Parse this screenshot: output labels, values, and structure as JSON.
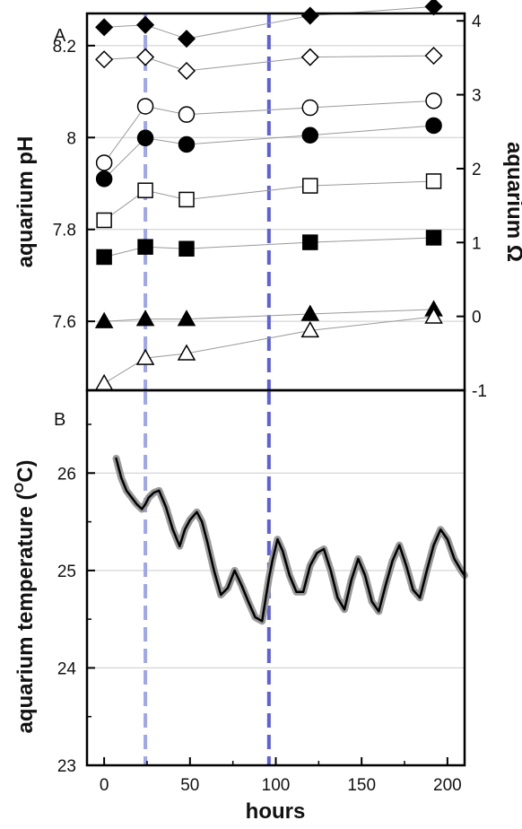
{
  "chart_data": [
    {
      "panel": "A",
      "type": "scatter",
      "xlabel": "",
      "ylabel": "aquarium pH",
      "y2label": "aquarium Ω",
      "xlim": [
        -10,
        210
      ],
      "ylim": [
        7.45,
        8.27
      ],
      "y2lim": [
        -1,
        4.1
      ],
      "yticks": [
        "7.6",
        "7.8",
        "8",
        "8.2"
      ],
      "y2ticks": [
        "-1",
        "0",
        "1",
        "2",
        "3",
        "4"
      ],
      "grid": "horizontal",
      "x": [
        0,
        24,
        48,
        120,
        192
      ],
      "series": [
        {
          "marker": "diamond",
          "filled": true,
          "values": [
            8.24,
            8.245,
            8.215,
            8.265,
            8.285
          ]
        },
        {
          "marker": "diamond",
          "filled": false,
          "values": [
            8.17,
            8.175,
            8.145,
            8.175,
            8.178
          ]
        },
        {
          "marker": "circle",
          "filled": false,
          "values": [
            7.945,
            8.068,
            8.05,
            8.065,
            8.08
          ]
        },
        {
          "marker": "circle",
          "filled": true,
          "values": [
            7.91,
            7.999,
            7.985,
            8.005,
            8.026
          ]
        },
        {
          "marker": "square",
          "filled": false,
          "values": [
            7.82,
            7.885,
            7.865,
            7.895,
            7.905
          ]
        },
        {
          "marker": "square",
          "filled": true,
          "values": [
            7.74,
            7.762,
            7.758,
            7.772,
            7.782
          ]
        },
        {
          "marker": "triangle",
          "filled": true,
          "values": [
            7.6,
            7.605,
            7.605,
            7.616,
            7.626
          ]
        },
        {
          "marker": "triangle",
          "filled": false,
          "values": [
            7.465,
            7.52,
            7.53,
            7.58,
            7.61
          ]
        }
      ],
      "vlines": [
        {
          "x": 24,
          "color": "#9da6ee"
        },
        {
          "x": 96,
          "color": "#5b5fe0"
        }
      ]
    },
    {
      "panel": "B",
      "type": "line",
      "xlabel": "hours",
      "ylabel": "aquarium temperature (°C)",
      "xlim": [
        -10,
        210
      ],
      "ylim": [
        23,
        26.85
      ],
      "xticks": [
        "0",
        "50",
        "100",
        "150",
        "200"
      ],
      "yticks": [
        "23",
        "24",
        "25",
        "26"
      ],
      "grid": "horizontal",
      "series": [
        {
          "name": "",
          "x": [
            7,
            10,
            13,
            16,
            19,
            22,
            24,
            26,
            29,
            32,
            36,
            40,
            44,
            47,
            50,
            54,
            57,
            60,
            64,
            68,
            72,
            76,
            80,
            84,
            88,
            92,
            94,
            96,
            98,
            101,
            104,
            108,
            112,
            116,
            120,
            124,
            128,
            132,
            136,
            140,
            144,
            148,
            152,
            156,
            160,
            164,
            168,
            172,
            176,
            180,
            184,
            188,
            192,
            196,
            200,
            204,
            208,
            210
          ],
          "y": [
            26.15,
            25.95,
            25.82,
            25.75,
            25.68,
            25.63,
            25.68,
            25.75,
            25.8,
            25.82,
            25.65,
            25.42,
            25.25,
            25.42,
            25.52,
            25.6,
            25.5,
            25.3,
            25.0,
            24.75,
            24.82,
            25.0,
            24.85,
            24.68,
            24.52,
            24.48,
            24.7,
            24.92,
            25.1,
            25.32,
            25.2,
            24.95,
            24.78,
            24.78,
            25.05,
            25.18,
            25.22,
            25.0,
            24.72,
            24.6,
            24.9,
            25.12,
            24.95,
            24.68,
            24.58,
            24.85,
            25.1,
            25.26,
            25.05,
            24.8,
            24.72,
            25.0,
            25.26,
            25.42,
            25.32,
            25.12,
            25.0,
            24.95
          ]
        }
      ],
      "vlines": [
        {
          "x": 24,
          "color": "#9da6ee"
        },
        {
          "x": 96,
          "color": "#5b5fe0"
        }
      ]
    }
  ],
  "labels": {
    "panel_a": "A",
    "panel_b": "B",
    "ph_axis": "aquarium pH",
    "omega_axis": "aquarium Ω",
    "temp_axis_prefix": "aquarium temperature (",
    "temp_axis_sup": "O",
    "temp_axis_suffix": "C)",
    "x_axis": "hours"
  }
}
